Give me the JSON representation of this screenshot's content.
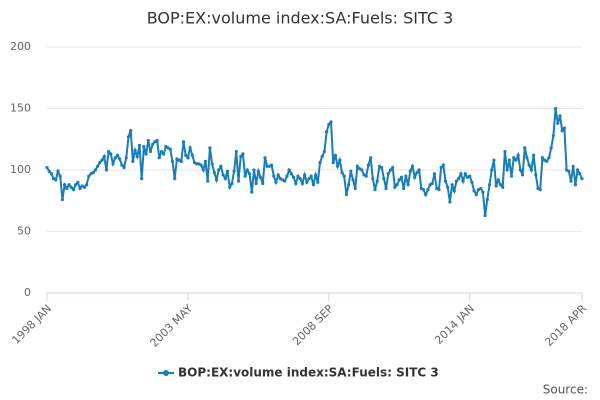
{
  "chart_data": {
    "type": "line",
    "title": "BOP:EX:volume index:SA:Fuels: SITC 3",
    "source": "Source:",
    "categories": [
      "1998 JAN",
      null,
      null,
      null,
      null,
      null,
      null,
      null,
      null,
      null,
      null,
      null,
      null,
      null,
      null,
      null,
      null,
      null,
      null,
      null,
      null,
      null,
      null,
      null,
      null,
      null,
      null,
      null,
      null,
      null,
      null,
      null,
      null,
      null,
      null,
      null,
      null,
      null,
      null,
      null,
      null,
      null,
      null,
      null,
      null,
      null,
      null,
      null,
      null,
      null,
      null,
      null,
      null,
      null,
      null,
      null,
      null,
      null,
      null,
      null,
      null,
      null,
      null,
      null,
      "2003 MAY",
      null,
      null,
      null,
      null,
      null,
      null,
      null,
      null,
      null,
      null,
      null,
      null,
      null,
      null,
      null,
      null,
      null,
      null,
      null,
      null,
      null,
      null,
      null,
      null,
      null,
      null,
      null,
      null,
      null,
      null,
      null,
      null,
      null,
      null,
      null,
      null,
      null,
      null,
      null,
      null,
      null,
      null,
      null,
      null,
      null,
      null,
      null,
      null,
      null,
      null,
      null,
      null,
      null,
      null,
      null,
      null,
      null,
      null,
      null,
      null,
      null,
      null,
      null,
      "2008 SEP",
      null,
      null,
      null,
      null,
      null,
      null,
      null,
      null,
      null,
      null,
      null,
      null,
      null,
      null,
      null,
      null,
      null,
      null,
      null,
      null,
      null,
      null,
      null,
      null,
      null,
      null,
      null,
      null,
      null,
      null,
      null,
      null,
      null,
      null,
      null,
      null,
      null,
      null,
      null,
      null,
      null,
      null,
      null,
      null,
      null,
      null,
      null,
      null,
      null,
      null,
      null,
      null,
      null,
      null,
      null,
      null,
      null,
      null,
      null,
      null,
      null,
      null,
      null,
      "2014 JAN",
      null,
      null,
      null,
      null,
      null,
      null,
      null,
      null,
      null,
      null,
      null,
      null,
      null,
      null,
      null,
      null,
      null,
      null,
      null,
      null,
      null,
      null,
      null,
      null,
      null,
      null,
      null,
      null,
      null,
      null,
      null,
      null,
      null,
      null,
      null,
      null,
      null,
      null,
      null,
      null,
      null,
      null,
      null,
      null,
      null,
      null,
      null,
      null,
      null,
      null,
      "2018 APR"
    ],
    "series": [
      {
        "name": "BOP:EX:volume index:SA:Fuels: SITC 3",
        "color": "#1a7db6",
        "values": [
          102,
          99,
          97,
          93,
          92,
          99,
          95,
          76,
          88,
          85,
          88,
          86,
          84,
          88,
          90,
          85,
          87,
          86,
          88,
          95,
          97,
          98,
          100,
          103,
          106,
          108,
          111,
          100,
          115,
          113,
          105,
          110,
          112,
          109,
          104,
          102,
          110,
          127,
          132,
          107,
          116,
          111,
          120,
          93,
          119,
          113,
          124,
          115,
          121,
          123,
          124,
          110,
          115,
          113,
          119,
          118,
          117,
          107,
          93,
          109,
          108,
          107,
          123,
          112,
          110,
          118,
          112,
          106,
          105,
          105,
          104,
          100,
          107,
          91,
          118,
          105,
          98,
          92,
          100,
          103,
          96,
          93,
          99,
          86,
          89,
          99,
          115,
          91,
          111,
          113,
          95,
          100,
          97,
          82,
          100,
          89,
          99,
          94,
          89,
          110,
          103,
          103,
          104,
          95,
          90,
          96,
          93,
          92,
          91,
          95,
          100,
          97,
          94,
          89,
          95,
          93,
          89,
          96,
          90,
          93,
          95,
          88,
          96,
          90,
          106,
          111,
          115,
          131,
          137,
          139,
          106,
          112,
          103,
          108,
          98,
          95,
          80,
          88,
          99,
          92,
          85,
          103,
          101,
          100,
          96,
          95,
          104,
          110,
          93,
          84,
          91,
          103,
          102,
          93,
          85,
          97,
          100,
          102,
          86,
          88,
          92,
          94,
          85,
          95,
          88,
          99,
          103,
          94,
          98,
          100,
          85,
          84,
          80,
          84,
          88,
          89,
          97,
          85,
          84,
          102,
          104,
          91,
          86,
          74,
          88,
          83,
          91,
          93,
          97,
          91,
          97,
          94,
          95,
          90,
          83,
          80,
          84,
          85,
          82,
          63,
          76,
          88,
          100,
          108,
          87,
          92,
          88,
          86,
          115,
          100,
          108,
          95,
          110,
          108,
          112,
          100,
          96,
          118,
          110,
          104,
          100,
          112,
          96,
          85,
          84,
          110,
          108,
          107,
          110,
          118,
          128,
          150,
          138,
          144,
          132,
          134,
          100,
          99,
          91,
          103,
          88,
          100,
          97,
          93
        ]
      }
    ],
    "ylim": [
      0,
      200
    ],
    "yticks": [
      0,
      50,
      100,
      150,
      200
    ],
    "grid": true
  }
}
